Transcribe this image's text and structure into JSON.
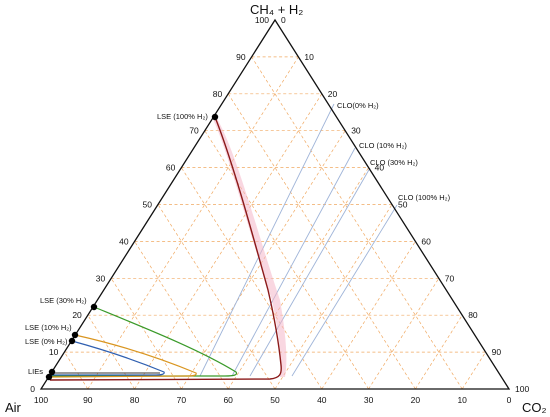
{
  "diagram": {
    "apex_top": "CH₄ + H₂",
    "apex_left": "Air",
    "apex_right": "CO₂",
    "left_ticks": [
      "0",
      "10",
      "20",
      "30",
      "40",
      "50",
      "60",
      "70",
      "80",
      "90",
      "100"
    ],
    "bottom_ticks": [
      "100",
      "90",
      "80",
      "70",
      "60",
      "50",
      "40",
      "30",
      "20",
      "10",
      "0"
    ],
    "right_ticks": [
      "0",
      "10",
      "20",
      "30",
      "40",
      "50",
      "60",
      "70",
      "80",
      "90",
      "100"
    ],
    "lse_labels": [
      {
        "text": "LSE (100% H₂)",
        "color": "#8b1a1a"
      },
      {
        "text": "LSE (30% H₂)",
        "color": "#3a9a2a"
      },
      {
        "text": "LSE (10% H₂)",
        "color": "#d9951f"
      },
      {
        "text": "LSE (0% H₂)",
        "color": "#2f5fb0"
      },
      {
        "text": "LIEs",
        "color": "#333333"
      }
    ],
    "clo_labels": [
      {
        "text": "CLO(0% H₂)"
      },
      {
        "text": "CLO (10% H₂)"
      },
      {
        "text": "CLO (30% H₂)"
      },
      {
        "text": "CLO (100% H₂)"
      }
    ],
    "colors": {
      "grid": "#f0a860",
      "clo_line": "#9fb4d8",
      "frame": "#111111",
      "pink_band": "#f4b6c8"
    }
  }
}
